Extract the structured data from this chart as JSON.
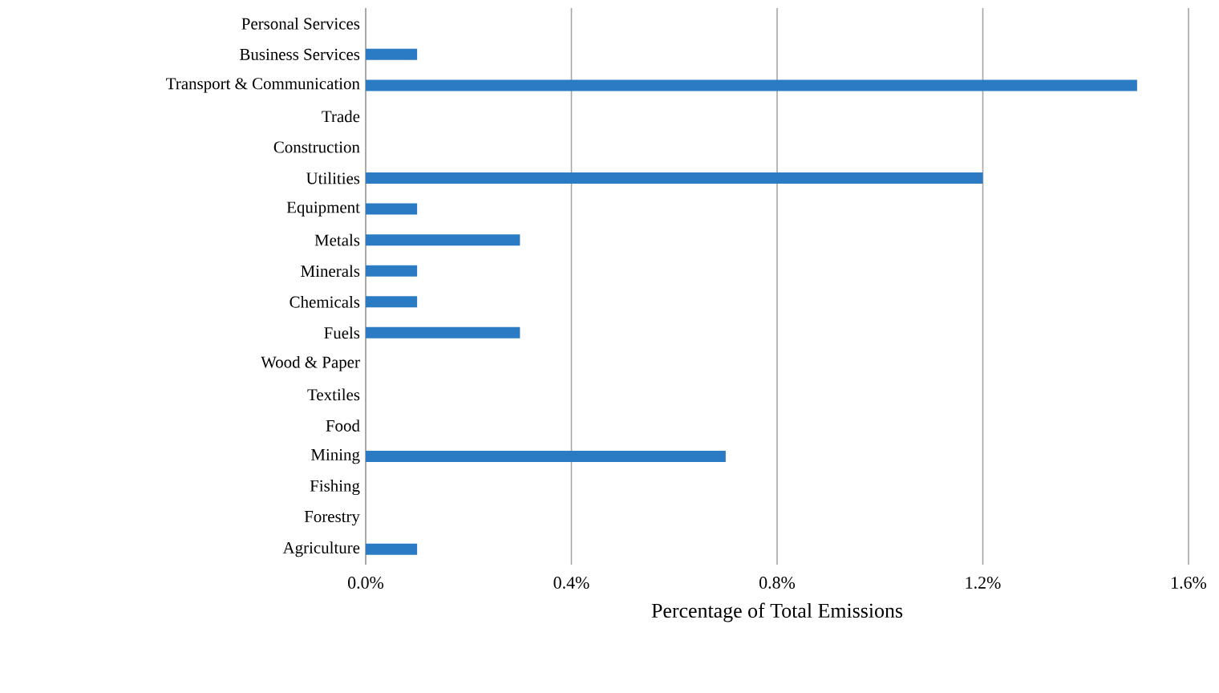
{
  "chart_data": {
    "type": "bar",
    "orientation": "horizontal",
    "xlabel": "Percentage of Total Emissions",
    "categories": [
      "Personal Services",
      "Business Services",
      "Transport & Communication",
      "Trade",
      "Construction",
      "Utilities",
      "Equipment",
      "Metals",
      "Minerals",
      "Chemicals",
      "Fuels",
      "Wood & Paper",
      "Textiles",
      "Food",
      "Mining",
      "Fishing",
      "Forestry",
      "Agriculture"
    ],
    "values": [
      0,
      0.1,
      1.5,
      0,
      0,
      1.2,
      0.1,
      0.3,
      0.1,
      0.1,
      0.3,
      0,
      0,
      0,
      0.7,
      0,
      0,
      0.1
    ],
    "color": "#2a7bc4",
    "xlim": [
      0,
      1.6
    ],
    "xticks": [
      {
        "value": 0,
        "label": "0.0%"
      },
      {
        "value": 0.4,
        "label": "0.4%"
      },
      {
        "value": 0.8,
        "label": "0.8%"
      },
      {
        "value": 1.2,
        "label": "1.2%"
      },
      {
        "value": 1.6,
        "label": "1.6%"
      }
    ],
    "grid": "x"
  }
}
